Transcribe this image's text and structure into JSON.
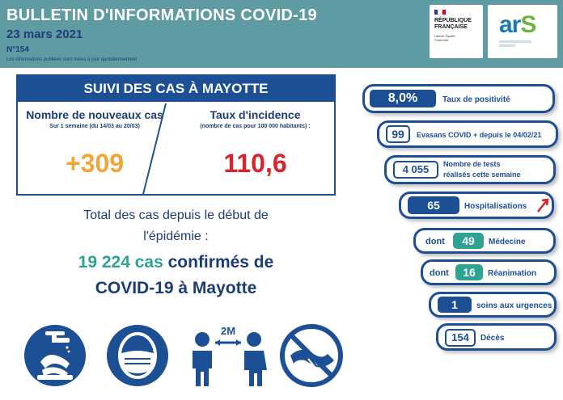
{
  "header": {
    "title": "BULLETIN D'INFORMATIONS COVID-19",
    "date": "23 mars 2021",
    "number": "N°154",
    "note": "Les informations publiées sont mises à jour quotidiennement"
  },
  "logos": {
    "rf_name": "RÉPUBLIQUE FRANÇAISE",
    "rf_motto": "Liberté Égalité Fraternité",
    "ars_word_a": "ar",
    "ars_word_s": "S"
  },
  "main": {
    "heading": "SUIVI DES CAS À MAYOTTE",
    "left_label": "Nombre de nouveaux cas",
    "left_sub": "Sur 1 semaine (du 14/03 au 20/03)",
    "left_value": "+309",
    "right_label": "Taux d'incidence",
    "right_sub": "(nombre de cas pour 100 000 habitants) :",
    "right_value": "110,6"
  },
  "total": {
    "line1": "Total des cas depuis le début de",
    "line2": "l'épidémie :",
    "count": "19 224 cas",
    "confirmed": "confirmés de",
    "line4": "COVID-19 à Mayotte"
  },
  "icons": [
    "hand-washing-icon",
    "mask-icon",
    "distance-icon",
    "no-handshake-icon"
  ],
  "icons_text": {
    "distance": "2M"
  },
  "stats": {
    "positivity_value": "8,0%",
    "positivity_label": "Taux de positivité",
    "evasan_value": "99",
    "evasan_label": "Evasans COVID + depuis le 04/02/21",
    "tests_value": "4 055",
    "tests_label_1": "Nombre de tests",
    "tests_label_2": "réalisés cette semaine",
    "hosp_value": "65",
    "hosp_label": "Hospitalisations",
    "med_prefix": "dont",
    "med_value": "49",
    "med_label": "Médecine",
    "rea_prefix": "dont",
    "rea_value": "16",
    "rea_label": "Réanimation",
    "urg_value": "1",
    "urg_label": "soins aux urgences",
    "deces_value": "154",
    "deces_label": "Décès"
  },
  "colors": {
    "header_bg": "#5f9ba2",
    "navy": "#1c4f94",
    "teal": "#2fa391",
    "orange": "#f3a537",
    "red": "#d6262d"
  }
}
